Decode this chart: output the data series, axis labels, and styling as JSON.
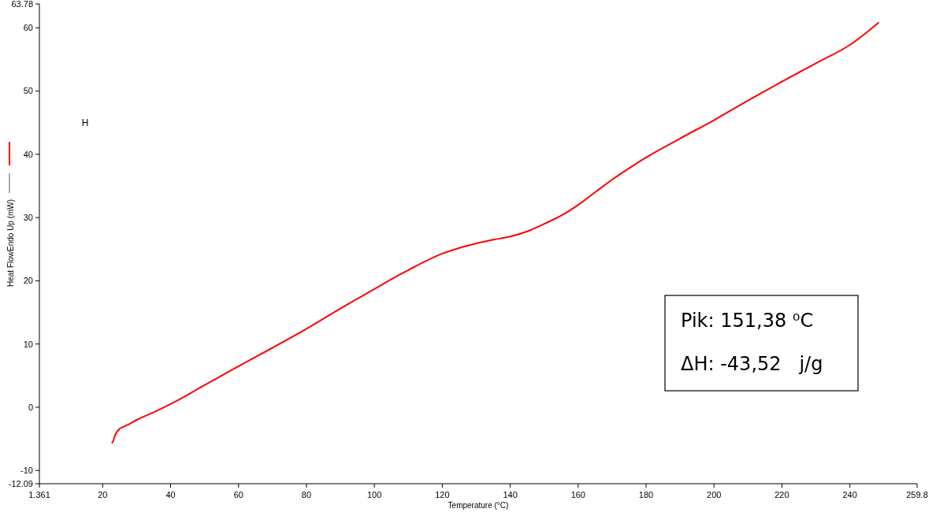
{
  "chart_data": {
    "type": "line",
    "xlabel": "Temperature (°C)",
    "ylabel": "Heat FlowEndo Up (mW)",
    "annotations": [
      "H",
      "Pik: 151,38 ⁰C",
      "ΔH: -43,52   j/g"
    ],
    "xlim": [
      1.361,
      259.8
    ],
    "xticks": [
      1.361,
      20,
      40,
      60,
      80,
      100,
      120,
      140,
      160,
      180,
      200,
      220,
      240,
      259.8
    ],
    "ylim": [
      -12.09,
      63.78
    ],
    "yticks": [
      -12.09,
      -10,
      0,
      10,
      20,
      30,
      40,
      50,
      60,
      63.78
    ],
    "grid": false,
    "marker": "none",
    "line_style": "solid",
    "series": [
      {
        "color": "#ff0000",
        "x": [
          22.8,
          23.2,
          23.6,
          24.2,
          25,
          26.5,
          28,
          30,
          35,
          40,
          50,
          60,
          70,
          80,
          90,
          100,
          110,
          120,
          125,
          130,
          135,
          140,
          145,
          150,
          155,
          160,
          165,
          170,
          175,
          180,
          190,
          200,
          210,
          220,
          230,
          240,
          248.4
        ],
        "values": [
          -5.6,
          -5.2,
          -4.5,
          -3.9,
          -3.4,
          -3.0,
          -2.6,
          -2.0,
          -0.8,
          0.5,
          3.5,
          6.5,
          9.4,
          12.4,
          15.6,
          18.7,
          21.7,
          24.3,
          25.2,
          25.9,
          26.5,
          27.0,
          27.8,
          29.0,
          30.3,
          32.0,
          34.0,
          36.0,
          37.8,
          39.5,
          42.5,
          45.4,
          48.5,
          51.5,
          54.4,
          57.3,
          60.8
        ]
      }
    ]
  }
}
